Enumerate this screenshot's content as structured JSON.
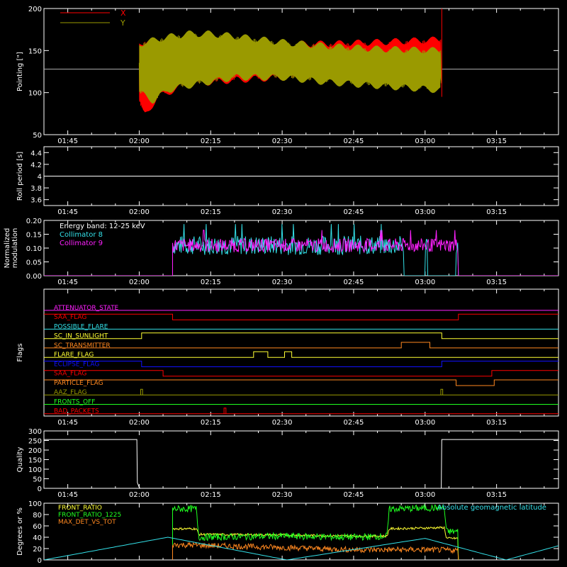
{
  "colors": {
    "axis": "#ffffff",
    "red": "#ff0000",
    "olive": "#9a9a00",
    "cyan": "#33e0e8",
    "magenta": "#ff20ff",
    "green": "#20ff20",
    "yellow": "#ffff33",
    "orange": "#ff8820",
    "blue": "#1010ff",
    "ref": "#aaaaaa"
  },
  "x_axis": {
    "tick_labels": [
      "01:45",
      "02:00",
      "02:15",
      "02:30",
      "02:45",
      "03:00",
      "03:15"
    ],
    "tick_minutes": [
      105,
      120,
      135,
      150,
      165,
      180,
      195
    ],
    "range_minutes": [
      100,
      208
    ]
  },
  "chart_data": [
    {
      "type": "line",
      "ylabel": "Pointing [\"]",
      "ylim": [
        50,
        200
      ],
      "y_ticks": [
        50,
        100,
        150,
        200
      ],
      "legend": [
        "X",
        "Y"
      ],
      "reference_level": 128,
      "series": [
        {
          "name": "X",
          "color_key": "red",
          "start_minute": 120,
          "end_minute": 183.5,
          "upper": [
            [
              120,
              160
            ],
            [
              125,
              162
            ],
            [
              130,
              163
            ],
            [
              140,
              162
            ],
            [
              150,
              158
            ],
            [
              160,
              158
            ],
            [
              170,
              160
            ],
            [
              183,
              163
            ]
          ],
          "lower": [
            [
              120,
              90
            ],
            [
              121,
              72
            ],
            [
              124,
              95
            ],
            [
              130,
              110
            ],
            [
              140,
              115
            ],
            [
              150,
              118
            ],
            [
              160,
              115
            ],
            [
              170,
              112
            ],
            [
              183,
              108
            ]
          ]
        },
        {
          "name": "Y",
          "color_key": "olive",
          "start_minute": 120,
          "end_minute": 183.5,
          "upper": [
            [
              120,
              158
            ],
            [
              125,
              165
            ],
            [
              130,
              170
            ],
            [
              135,
              170
            ],
            [
              140,
              167
            ],
            [
              150,
              160
            ],
            [
              160,
              155
            ],
            [
              170,
              152
            ],
            [
              183,
              150
            ]
          ],
          "lower": [
            [
              120,
              100
            ],
            [
              123,
              90
            ],
            [
              126,
              103
            ],
            [
              130,
              108
            ],
            [
              140,
              118
            ],
            [
              150,
              118
            ],
            [
              160,
              112
            ],
            [
              170,
              108
            ],
            [
              183,
              103
            ]
          ]
        }
      ],
      "spike_minute": 183.5,
      "spike_max": 200
    },
    {
      "type": "line",
      "ylabel": "Roll period [s]",
      "ylim": [
        3.5,
        4.5
      ],
      "y_ticks": [
        3.6,
        3.8,
        4.0,
        4.2,
        4.4
      ],
      "series": [
        {
          "name": "",
          "color_key": "axis",
          "constant": 4.0
        }
      ]
    },
    {
      "type": "line",
      "ylabel": "Normalized modulation",
      "ylabel_lines": [
        "Normalized",
        "modulation"
      ],
      "ylim": [
        0,
        0.2
      ],
      "y_ticks": [
        0.0,
        0.05,
        0.1,
        0.15,
        0.2
      ],
      "y_tick_labels": [
        "0.00",
        "0.05",
        "0.10",
        "0.15",
        "0.20"
      ],
      "annotation": "Energy band: 12-25 keV",
      "legend": [
        "Collimator 8",
        "Collimator 9"
      ],
      "series": [
        {
          "name": "Collimator 8",
          "color_key": "cyan",
          "start_minute": 127,
          "end_minute": 187,
          "level": 0.11,
          "noise": 0.035,
          "zero_gaps": [
            [
              175.5,
              180
            ],
            [
              180.5,
              186.5
            ]
          ]
        },
        {
          "name": "Collimator 9",
          "color_key": "magenta",
          "start_minute": 127,
          "end_minute": 187,
          "level": 0.11,
          "noise": 0.025,
          "zero_gaps": []
        }
      ]
    },
    {
      "type": "table",
      "ylabel": "Flags",
      "flags": [
        {
          "name": "ATTENUATOR_STATE",
          "color_key": "magenta",
          "segments": []
        },
        {
          "name": "SAA_FLAG",
          "color_key": "red",
          "segments": [
            [
              100,
              127,
              1
            ],
            [
              127,
              187,
              0
            ],
            [
              187,
              208,
              1
            ]
          ]
        },
        {
          "name": "POSSIBLE_FLARE",
          "color_key": "cyan",
          "segments": []
        },
        {
          "name": "SC_IN_SUNLIGHT",
          "color_key": "yellow",
          "segments": [
            [
              100,
              120.5,
              0
            ],
            [
              120.5,
              183.5,
              1
            ],
            [
              183.5,
              208,
              0
            ]
          ]
        },
        {
          "name": "SC_TRANSMITTER",
          "color_key": "orange",
          "segments": [
            [
              100,
              175,
              0
            ],
            [
              175,
              181,
              1
            ],
            [
              181,
              208,
              0
            ]
          ]
        },
        {
          "name": "FLARE_FLAG",
          "color_key": "yellow",
          "segments": [
            [
              100,
              144,
              0
            ],
            [
              144,
              147,
              1
            ],
            [
              147,
              150.5,
              0
            ],
            [
              150.5,
              152,
              1
            ],
            [
              152,
              208,
              0
            ]
          ]
        },
        {
          "name": "ECLIPSE_FLAG",
          "color_key": "blue",
          "segments": [
            [
              100,
              120.5,
              1
            ],
            [
              120.5,
              183.5,
              0
            ],
            [
              183.5,
              208,
              1
            ]
          ]
        },
        {
          "name": "SAA_FLAG",
          "color_key": "red",
          "segments": [
            [
              100,
              125,
              1
            ],
            [
              125,
              194,
              0
            ],
            [
              194,
              208,
              1
            ]
          ]
        },
        {
          "name": "PARTICLE_FLAG",
          "color_key": "orange",
          "segments": [
            [
              100,
              186.5,
              1
            ],
            [
              186.5,
              194.5,
              0
            ],
            [
              194.5,
              208,
              1
            ]
          ]
        },
        {
          "name": "AAZ_FLAG",
          "color_key": "olive",
          "spikes": [
            120.5,
            183.5
          ],
          "segments": []
        },
        {
          "name": "FRONTS_OFF",
          "color_key": "green",
          "segments": []
        },
        {
          "name": "BAD_PACKETS",
          "color_key": "red",
          "spikes": [
            138
          ],
          "segments": []
        }
      ]
    },
    {
      "type": "line",
      "ylabel": "Quality",
      "ylim": [
        0,
        300
      ],
      "y_ticks": [
        0,
        50,
        100,
        150,
        200,
        250,
        300
      ],
      "series": [
        {
          "name": "",
          "color_key": "axis",
          "points": [
            [
              100,
              255
            ],
            [
              119.5,
              255
            ],
            [
              119.6,
              30
            ],
            [
              120,
              5
            ],
            [
              120.2,
              0
            ],
            [
              183.4,
              0
            ],
            [
              183.5,
              255
            ],
            [
              208,
              255
            ]
          ]
        }
      ]
    },
    {
      "type": "line",
      "ylabel": "Degrees or %",
      "ylim": [
        0,
        100
      ],
      "y_ticks": [
        0,
        20,
        40,
        60,
        80,
        100
      ],
      "legend": [
        "FRONT_RATIO",
        "FRONT_RATIO_1225",
        "MAX_DET_VS_TOT"
      ],
      "annotation": "Absolute geomagnetic latitude",
      "series": [
        {
          "name": "FRONT_RATIO",
          "color_key": "yellow",
          "start_minute": 127,
          "end_minute": 187,
          "points": [
            [
              127,
              55
            ],
            [
              132,
              55
            ],
            [
              132.5,
              45
            ],
            [
              150,
              44
            ],
            [
              165,
              42
            ],
            [
              172,
              42
            ],
            [
              172.5,
              55
            ],
            [
              184,
              57
            ],
            [
              184.5,
              38
            ],
            [
              187,
              38
            ]
          ],
          "noise": 2
        },
        {
          "name": "FRONT_RATIO_1225",
          "color_key": "green",
          "start_minute": 127,
          "end_minute": 187,
          "points": [
            [
              127,
              90
            ],
            [
              132,
              90
            ],
            [
              132.5,
              40
            ],
            [
              150,
              42
            ],
            [
              165,
              40
            ],
            [
              172,
              42
            ],
            [
              172.5,
              90
            ],
            [
              184,
              92
            ],
            [
              184.5,
              50
            ],
            [
              187,
              50
            ]
          ],
          "noise": 6
        },
        {
          "name": "MAX_DET_VS_TOT",
          "color_key": "orange",
          "start_minute": 127,
          "end_minute": 187,
          "points": [
            [
              127,
              27
            ],
            [
              150,
              22
            ],
            [
              165,
              18
            ],
            [
              180,
              18
            ],
            [
              187,
              17
            ]
          ],
          "noise": 5
        },
        {
          "name": "Absolute geomagnetic latitude",
          "color_key": "cyan",
          "points": [
            [
              100,
              0
            ],
            [
              126,
              40
            ],
            [
              151,
              0
            ],
            [
              180,
              38
            ],
            [
              197,
              0
            ],
            [
              208,
              25
            ]
          ]
        }
      ]
    }
  ]
}
